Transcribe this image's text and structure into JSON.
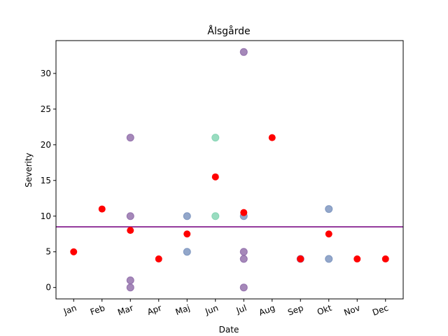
{
  "chart_data": {
    "type": "scatter",
    "title": "Ålsgårde",
    "xlabel": "Date",
    "ylabel": "Severity",
    "categories": [
      "Jan",
      "Feb",
      "Mar",
      "Apr",
      "Maj",
      "Jun",
      "Jul",
      "Aug",
      "Sep",
      "Okt",
      "Nov",
      "Dec"
    ],
    "ylim": [
      -1.6,
      34.6
    ],
    "yticks": [
      0,
      5,
      10,
      15,
      20,
      25,
      30
    ],
    "grid": false,
    "reference_line": {
      "y": 8.5,
      "color": "#7b0f86"
    },
    "series": [
      {
        "color": "#8e6aa8",
        "points": [
          {
            "x": "Mar",
            "y": 21
          },
          {
            "x": "Mar",
            "y": 10
          },
          {
            "x": "Mar",
            "y": 1
          },
          {
            "x": "Mar",
            "y": 0
          },
          {
            "x": "Jul",
            "y": 33
          },
          {
            "x": "Jul",
            "y": 5
          },
          {
            "x": "Jul",
            "y": 4
          },
          {
            "x": "Jul",
            "y": 0
          },
          {
            "x": "Sep",
            "y": 4
          }
        ]
      },
      {
        "color": "#7891bd",
        "points": [
          {
            "x": "Maj",
            "y": 10
          },
          {
            "x": "Maj",
            "y": 5
          },
          {
            "x": "Jul",
            "y": 10
          },
          {
            "x": "Okt",
            "y": 11
          },
          {
            "x": "Okt",
            "y": 4
          }
        ]
      },
      {
        "color": "#7fd3b0",
        "points": [
          {
            "x": "Jun",
            "y": 21
          },
          {
            "x": "Jun",
            "y": 10
          }
        ]
      },
      {
        "color": "#ff0000",
        "points": [
          {
            "x": "Jan",
            "y": 5
          },
          {
            "x": "Feb",
            "y": 11
          },
          {
            "x": "Mar",
            "y": 8
          },
          {
            "x": "Apr",
            "y": 4
          },
          {
            "x": "Maj",
            "y": 7.5
          },
          {
            "x": "Jun",
            "y": 15.5
          },
          {
            "x": "Jul",
            "y": 10.5
          },
          {
            "x": "Aug",
            "y": 21
          },
          {
            "x": "Sep",
            "y": 4
          },
          {
            "x": "Okt",
            "y": 7.5
          },
          {
            "x": "Nov",
            "y": 4
          },
          {
            "x": "Dec",
            "y": 4
          }
        ]
      }
    ]
  }
}
